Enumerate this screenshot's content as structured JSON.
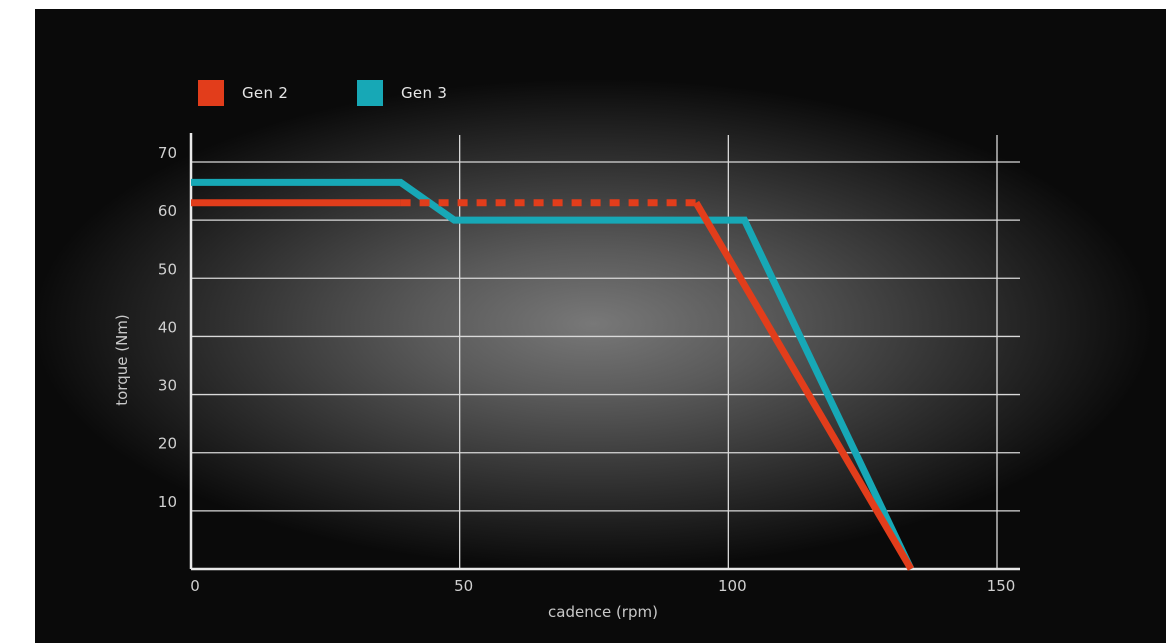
{
  "colors": {
    "gen2": "#e23d1b",
    "gen3": "#17a8b6",
    "grid": "#d9d9d9",
    "text": "#d0d0d0"
  },
  "legend": [
    {
      "label": "Gen 2",
      "color": "#e23d1b"
    },
    {
      "label": "Gen 3",
      "color": "#17a8b6"
    }
  ],
  "chart_data": {
    "type": "line",
    "title": "",
    "xlabel": "cadence (rpm)",
    "ylabel": "torque (Nm)",
    "xlim": [
      0,
      150
    ],
    "ylim": [
      0,
      70
    ],
    "xticks": [
      0,
      50,
      100,
      150
    ],
    "yticks": [
      10,
      20,
      30,
      40,
      50,
      60,
      70
    ],
    "grid": true,
    "legend_position": "top-left",
    "series": [
      {
        "name": "Gen 2",
        "color": "#e23d1b",
        "segments": [
          {
            "style": "solid",
            "points": [
              [
                0,
                63
              ],
              [
                39,
                63
              ]
            ]
          },
          {
            "style": "dashed",
            "points": [
              [
                39,
                63
              ],
              [
                94,
                63
              ]
            ]
          },
          {
            "style": "solid",
            "points": [
              [
                94,
                63
              ],
              [
                134,
                0
              ]
            ]
          }
        ]
      },
      {
        "name": "Gen 3",
        "color": "#17a8b6",
        "segments": [
          {
            "style": "solid",
            "points": [
              [
                0,
                66.5
              ],
              [
                39,
                66.5
              ],
              [
                49,
                60
              ],
              [
                103,
                60
              ],
              [
                134,
                0
              ]
            ]
          }
        ]
      }
    ]
  }
}
